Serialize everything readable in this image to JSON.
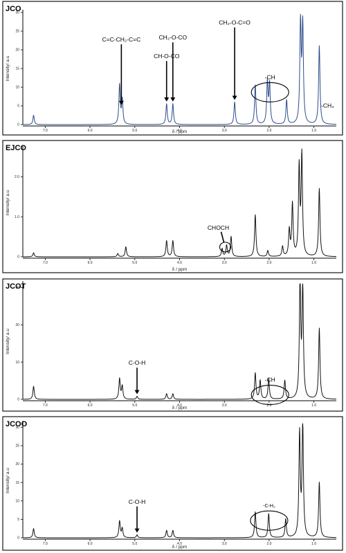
{
  "chart_data": [
    {
      "type": "line",
      "panel_label": "JCO",
      "xlabel": "δ / ppm",
      "ylabel": "Intensity/ a.u",
      "xlim": [
        7.5,
        0.5
      ],
      "ylim": [
        0,
        30
      ],
      "x_ticks": [
        "7.0",
        "6.0",
        "5.0",
        "4.0",
        "3.0",
        "2.0",
        "1.0"
      ],
      "x_tick_values": [
        7.0,
        6.0,
        5.0,
        4.0,
        3.0,
        2.0,
        1.0
      ],
      "y_ticks": [
        "0",
        "5",
        "10",
        "15",
        "20",
        "25",
        "30"
      ],
      "y_tick_values": [
        0,
        5,
        10,
        15,
        20,
        25,
        30
      ],
      "line_color": "#2b4a8a",
      "peaks": [
        {
          "ppm": 7.26,
          "height": 2.5
        },
        {
          "ppm": 5.34,
          "height": 10.5
        },
        {
          "ppm": 5.28,
          "height": 6.5
        },
        {
          "ppm": 4.29,
          "height": 5.5
        },
        {
          "ppm": 4.15,
          "height": 5.5
        },
        {
          "ppm": 2.77,
          "height": 6.0
        },
        {
          "ppm": 2.31,
          "height": 10.5
        },
        {
          "ppm": 2.04,
          "height": 11.0
        },
        {
          "ppm": 1.99,
          "height": 10.5
        },
        {
          "ppm": 1.61,
          "height": 6.5
        },
        {
          "ppm": 1.3,
          "height": 26.5
        },
        {
          "ppm": 1.25,
          "height": 26.0
        },
        {
          "ppm": 0.88,
          "height": 21.0
        }
      ],
      "annotations": [
        {
          "text": "C=C-CH₂-C=C",
          "ppm": 5.3,
          "arrow_top": 21.5
        },
        {
          "text": "CH-O-CO",
          "ppm": 4.29,
          "arrow_top": 17.0
        },
        {
          "text": "CH₂-O-CO",
          "ppm": 4.15,
          "arrow_top": 22.0
        },
        {
          "text": "CH₂-O-C=O",
          "ppm": 2.77,
          "arrow_top": 26.0
        },
        {
          "text": "-CH",
          "ppm": 1.98,
          "ellipse": true
        },
        {
          "text": "-CH₃",
          "ppm": 0.85
        }
      ]
    },
    {
      "type": "line",
      "panel_label": "EJCO",
      "xlabel": "δ / ppm",
      "ylabel": "Intensity/ a.u",
      "xlim": [
        7.5,
        0.5
      ],
      "ylim": [
        0,
        27
      ],
      "x_ticks": [
        "7.0",
        "6.0",
        "5.0",
        "4.0",
        "3.0",
        "2.0",
        "1.0"
      ],
      "x_tick_values": [
        7.0,
        6.0,
        5.0,
        4.0,
        3.0,
        2.0,
        1.0
      ],
      "y_ticks": [
        "0",
        "1.0",
        "2.0"
      ],
      "y_tick_values": [
        0,
        10,
        20
      ],
      "line_color": "#111111",
      "peaks": [
        {
          "ppm": 7.26,
          "height": 1.0
        },
        {
          "ppm": 5.38,
          "height": 0.8
        },
        {
          "ppm": 5.2,
          "height": 2.5
        },
        {
          "ppm": 4.29,
          "height": 4.0
        },
        {
          "ppm": 4.15,
          "height": 4.0
        },
        {
          "ppm": 3.05,
          "height": 2.0
        },
        {
          "ppm": 2.95,
          "height": 2.8
        },
        {
          "ppm": 2.85,
          "height": 5.0
        },
        {
          "ppm": 2.31,
          "height": 10.5
        },
        {
          "ppm": 2.03,
          "height": 1.5
        },
        {
          "ppm": 1.7,
          "height": 2.5
        },
        {
          "ppm": 1.55,
          "height": 6.5
        },
        {
          "ppm": 1.48,
          "height": 13.0
        },
        {
          "ppm": 1.33,
          "height": 22.0
        },
        {
          "ppm": 1.27,
          "height": 25.0
        },
        {
          "ppm": 0.88,
          "height": 17.0
        }
      ],
      "annotations": [
        {
          "text": "CHOCH",
          "ppm": 2.98,
          "ellipse": true
        }
      ]
    },
    {
      "type": "line",
      "panel_label": "JCOT",
      "xlabel": "δ / ppm",
      "ylabel": "Intensity/ a.u",
      "xlim": [
        7.5,
        0.5
      ],
      "ylim": [
        0,
        31
      ],
      "x_ticks": [
        "7.0",
        "6.0",
        "5.0",
        "4.0",
        "3.0",
        "2.0",
        "1.0"
      ],
      "x_tick_values": [
        7.0,
        6.0,
        5.0,
        4.0,
        3.0,
        2.0,
        1.0
      ],
      "y_ticks": [
        "0",
        "10",
        "20",
        "30"
      ],
      "y_tick_values": [
        0,
        10,
        20,
        30
      ],
      "line_color": "#111111",
      "peaks": [
        {
          "ppm": 7.26,
          "height": 3.5
        },
        {
          "ppm": 5.34,
          "height": 5.5
        },
        {
          "ppm": 5.28,
          "height": 3.5
        },
        {
          "ppm": 4.95,
          "height": 0.8
        },
        {
          "ppm": 4.29,
          "height": 1.5
        },
        {
          "ppm": 4.15,
          "height": 1.5
        },
        {
          "ppm": 2.31,
          "height": 7.0
        },
        {
          "ppm": 2.2,
          "height": 5.0
        },
        {
          "ppm": 2.01,
          "height": 5.5
        },
        {
          "ppm": 1.65,
          "height": 5.0
        },
        {
          "ppm": 1.31,
          "height": 31.0
        },
        {
          "ppm": 1.25,
          "height": 29.5
        },
        {
          "ppm": 0.88,
          "height": 19.0
        }
      ],
      "annotations": [
        {
          "text": "C-O-H",
          "ppm": 4.95,
          "arrow_top": 8.5
        },
        {
          "text": "-CH",
          "ppm": 1.98,
          "ellipse": true
        }
      ]
    },
    {
      "type": "line",
      "panel_label": "JCOO",
      "xlabel": "δ / ppm",
      "ylabel": "Intensity/ a.u",
      "xlim": [
        7.5,
        0.5
      ],
      "ylim": [
        0,
        31
      ],
      "x_ticks": [
        "7.0",
        "6.0",
        "5.0",
        "4.0",
        "3.0",
        "2.0",
        "1.0"
      ],
      "x_tick_values": [
        7.0,
        6.0,
        5.0,
        4.0,
        3.0,
        2.0,
        1.0
      ],
      "y_ticks": [
        "0",
        "5",
        "10",
        "15",
        "20",
        "25",
        "30"
      ],
      "y_tick_values": [
        0,
        5,
        10,
        15,
        20,
        25,
        30
      ],
      "line_color": "#111111",
      "peaks": [
        {
          "ppm": 7.26,
          "height": 2.5
        },
        {
          "ppm": 5.34,
          "height": 4.5
        },
        {
          "ppm": 5.28,
          "height": 2.5
        },
        {
          "ppm": 4.95,
          "height": 0.8
        },
        {
          "ppm": 4.29,
          "height": 2.0
        },
        {
          "ppm": 4.15,
          "height": 2.0
        },
        {
          "ppm": 2.31,
          "height": 7.0
        },
        {
          "ppm": 2.01,
          "height": 6.5
        },
        {
          "ppm": 1.63,
          "height": 5.0
        },
        {
          "ppm": 1.32,
          "height": 28.0
        },
        {
          "ppm": 1.25,
          "height": 30.5
        },
        {
          "ppm": 0.88,
          "height": 15.0
        }
      ],
      "annotations": [
        {
          "text": "C-O-H",
          "ppm": 4.95,
          "arrow_top": 8.5
        },
        {
          "text": "-C-H₂",
          "ppm": 2.0,
          "ellipse": true
        }
      ]
    }
  ]
}
